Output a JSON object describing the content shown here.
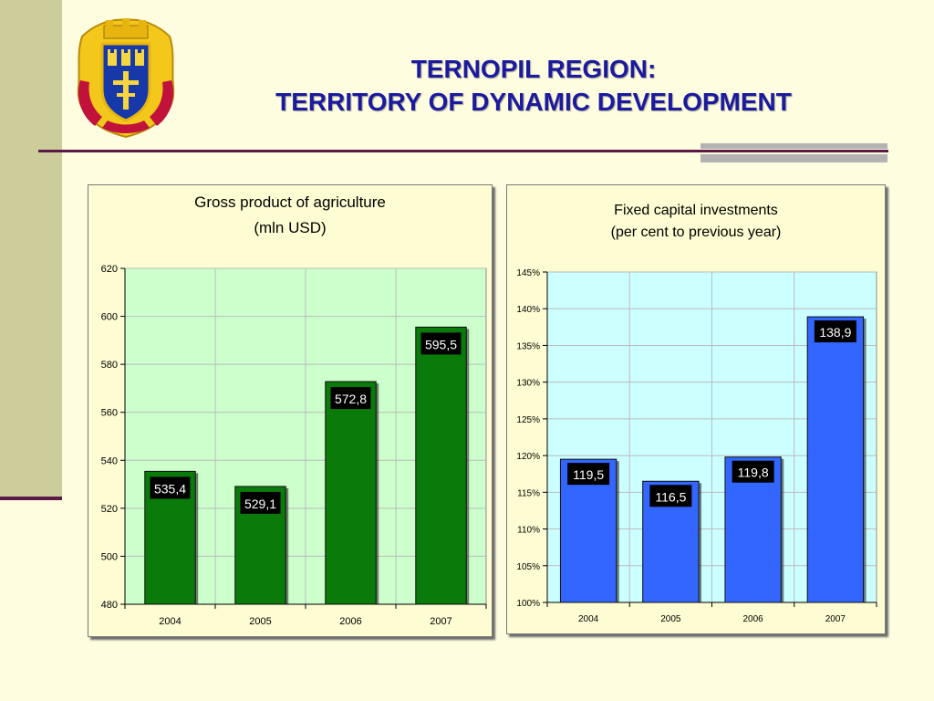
{
  "header": {
    "title_line1": "TERNOPIL REGION:",
    "title_line2": "TERRITORY OF DYNAMIC DEVELOPMENT"
  },
  "colors": {
    "background": "#fefde0",
    "title": "#1b1aa0",
    "accent_line": "#5a1a45",
    "agri_bar": "#0a7a0a",
    "agri_plot_bg": "#ccffcc",
    "invest_bar": "#3366ff",
    "invest_plot_bg": "#ccffff"
  },
  "chart_data": [
    {
      "type": "bar",
      "title": "Gross product of agriculture",
      "subtitle": "(mln USD)",
      "categories": [
        "2004",
        "2005",
        "2006",
        "2007"
      ],
      "values": [
        535.4,
        529.1,
        572.8,
        595.5
      ],
      "data_labels": [
        "535,4",
        "529,1",
        "572,8",
        "595,5"
      ],
      "ylim": [
        480,
        620
      ],
      "yticks": [
        480,
        500,
        520,
        540,
        560,
        580,
        600,
        620
      ],
      "ytick_labels": [
        "480",
        "500",
        "520",
        "540",
        "560",
        "580",
        "600",
        "620"
      ],
      "xlabel": "",
      "ylabel": "",
      "grid": true,
      "legend": "none"
    },
    {
      "type": "bar",
      "title": "Fixed capital investments",
      "subtitle": "(per cent to previous year)",
      "categories": [
        "2004",
        "2005",
        "2006",
        "2007"
      ],
      "values": [
        119.5,
        116.5,
        119.8,
        138.9
      ],
      "data_labels": [
        "119,5",
        "116,5",
        "119,8",
        "138,9"
      ],
      "ylim": [
        100,
        145
      ],
      "yticks": [
        100,
        105,
        110,
        115,
        120,
        125,
        130,
        135,
        140,
        145
      ],
      "ytick_labels": [
        "100%",
        "105%",
        "110%",
        "115%",
        "120%",
        "125%",
        "130%",
        "135%",
        "140%",
        "145%"
      ],
      "xlabel": "",
      "ylabel": "",
      "grid": true,
      "legend": "none"
    }
  ]
}
